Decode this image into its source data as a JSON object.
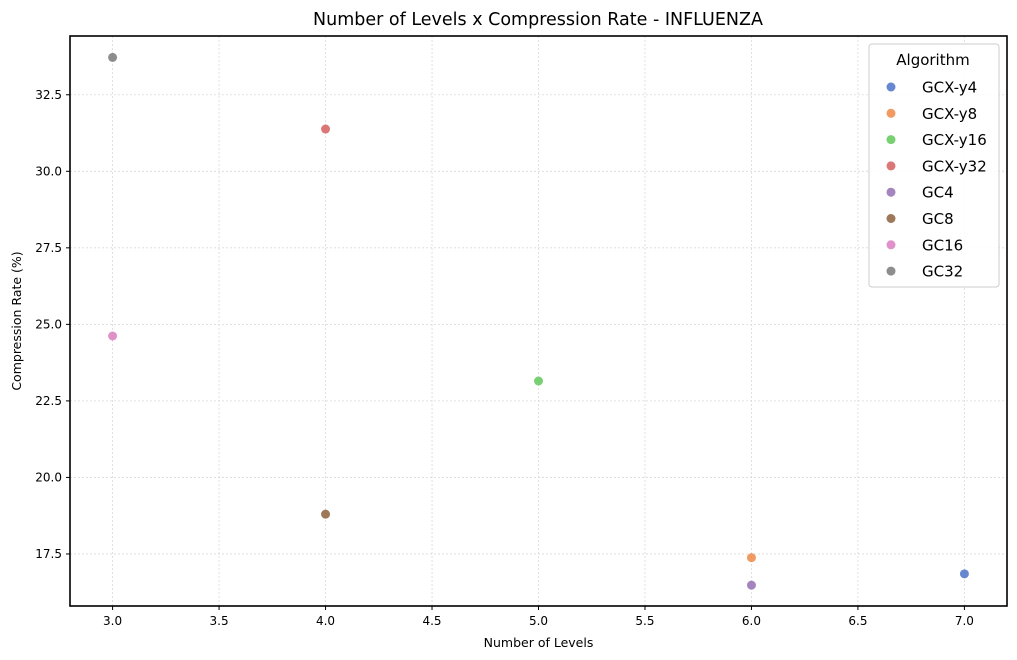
{
  "chart_data": {
    "type": "scatter",
    "title": "Number of Levels x Compression Rate - INFLUENZA",
    "xlabel": "Number of Levels",
    "ylabel": "Compression Rate (%)",
    "xlim": [
      2.8,
      7.2
    ],
    "ylim": [
      15.8,
      34.42
    ],
    "xticks": [
      3.0,
      3.5,
      4.0,
      4.5,
      5.0,
      5.5,
      6.0,
      6.5,
      7.0
    ],
    "xtick_labels": [
      "3.0",
      "3.5",
      "4.0",
      "4.5",
      "5.0",
      "5.5",
      "6.0",
      "6.5",
      "7.0"
    ],
    "yticks": [
      17.5,
      20.0,
      22.5,
      25.0,
      27.5,
      30.0,
      32.5
    ],
    "ytick_labels": [
      "17.5",
      "20.0",
      "22.5",
      "25.0",
      "27.5",
      "30.0",
      "32.5"
    ],
    "grid": true,
    "legend": {
      "title": "Algorithm",
      "position": "top-right"
    },
    "series": [
      {
        "name": "GCX-y4",
        "color": "#4c72c9",
        "points": [
          {
            "x": 7.0,
            "y": 16.85
          }
        ]
      },
      {
        "name": "GCX-y8",
        "color": "#ee8845",
        "points": [
          {
            "x": 6.0,
            "y": 17.38
          }
        ]
      },
      {
        "name": "GCX-y16",
        "color": "#62c85b",
        "points": [
          {
            "x": 5.0,
            "y": 23.15
          }
        ]
      },
      {
        "name": "GCX-y32",
        "color": "#d65f5f",
        "points": [
          {
            "x": 4.0,
            "y": 31.38
          }
        ]
      },
      {
        "name": "GC4",
        "color": "#9470b3",
        "points": [
          {
            "x": 6.0,
            "y": 16.48
          }
        ]
      },
      {
        "name": "GC8",
        "color": "#8c613c",
        "points": [
          {
            "x": 4.0,
            "y": 18.8
          }
        ]
      },
      {
        "name": "GC16",
        "color": "#dc7ec0",
        "points": [
          {
            "x": 3.0,
            "y": 24.62
          }
        ]
      },
      {
        "name": "GC32",
        "color": "#797979",
        "points": [
          {
            "x": 3.0,
            "y": 33.72
          }
        ]
      }
    ]
  }
}
